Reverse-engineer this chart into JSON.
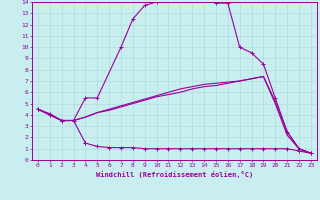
{
  "xlabel": "Windchill (Refroidissement éolien,°C)",
  "bg_color": "#c8eef0",
  "line_color": "#990099",
  "grid_color": "#b0dde0",
  "xlim": [
    -0.5,
    23.5
  ],
  "ylim": [
    0,
    14
  ],
  "xticks": [
    0,
    1,
    2,
    3,
    4,
    5,
    6,
    7,
    8,
    9,
    10,
    11,
    12,
    13,
    14,
    15,
    16,
    17,
    18,
    19,
    20,
    21,
    22,
    23
  ],
  "yticks": [
    0,
    1,
    2,
    3,
    4,
    5,
    6,
    7,
    8,
    9,
    10,
    11,
    12,
    13,
    14
  ],
  "line1_x": [
    0,
    1,
    2,
    3,
    4,
    5,
    7,
    8,
    9,
    10,
    11,
    12,
    13,
    14,
    15,
    16,
    17,
    18,
    19,
    20,
    21,
    22,
    23
  ],
  "line1_y": [
    4.5,
    4.1,
    3.5,
    3.5,
    5.5,
    5.5,
    10.0,
    12.5,
    13.7,
    14.0,
    14.2,
    14.4,
    14.6,
    14.3,
    13.9,
    13.9,
    10.0,
    9.5,
    8.5,
    5.5,
    2.5,
    1.0,
    0.6
  ],
  "line2_x": [
    0,
    1,
    2,
    3,
    4,
    4,
    5,
    6,
    7,
    8,
    9,
    10,
    11,
    12,
    13,
    14,
    15,
    16,
    17,
    18,
    19,
    20,
    21,
    22,
    23
  ],
  "line2_y": [
    4.5,
    4.0,
    3.5,
    3.5,
    1.5,
    1.5,
    1.2,
    1.1,
    1.1,
    1.1,
    1.0,
    1.0,
    1.0,
    1.0,
    1.0,
    1.0,
    1.0,
    1.0,
    1.0,
    1.0,
    1.0,
    1.0,
    1.0,
    0.8,
    0.6
  ],
  "line3_x": [
    0,
    1,
    2,
    3,
    4,
    5,
    6,
    7,
    8,
    9,
    10,
    11,
    12,
    13,
    14,
    15,
    16,
    17,
    18,
    19,
    20,
    21,
    22,
    23
  ],
  "line3_y": [
    4.5,
    4.0,
    3.5,
    3.5,
    3.8,
    4.2,
    4.4,
    4.7,
    5.0,
    5.3,
    5.6,
    5.8,
    6.0,
    6.3,
    6.5,
    6.6,
    6.8,
    7.0,
    7.2,
    7.4,
    5.2,
    2.5,
    1.0,
    0.6
  ],
  "line4_x": [
    0,
    1,
    2,
    3,
    4,
    5,
    6,
    7,
    8,
    9,
    10,
    11,
    12,
    13,
    14,
    15,
    16,
    17,
    18,
    19,
    20,
    21,
    22,
    23
  ],
  "line4_y": [
    4.5,
    4.0,
    3.5,
    3.5,
    3.8,
    4.2,
    4.5,
    4.8,
    5.1,
    5.4,
    5.7,
    6.0,
    6.3,
    6.5,
    6.7,
    6.8,
    6.9,
    7.0,
    7.2,
    7.4,
    5.0,
    2.2,
    1.0,
    0.6
  ]
}
